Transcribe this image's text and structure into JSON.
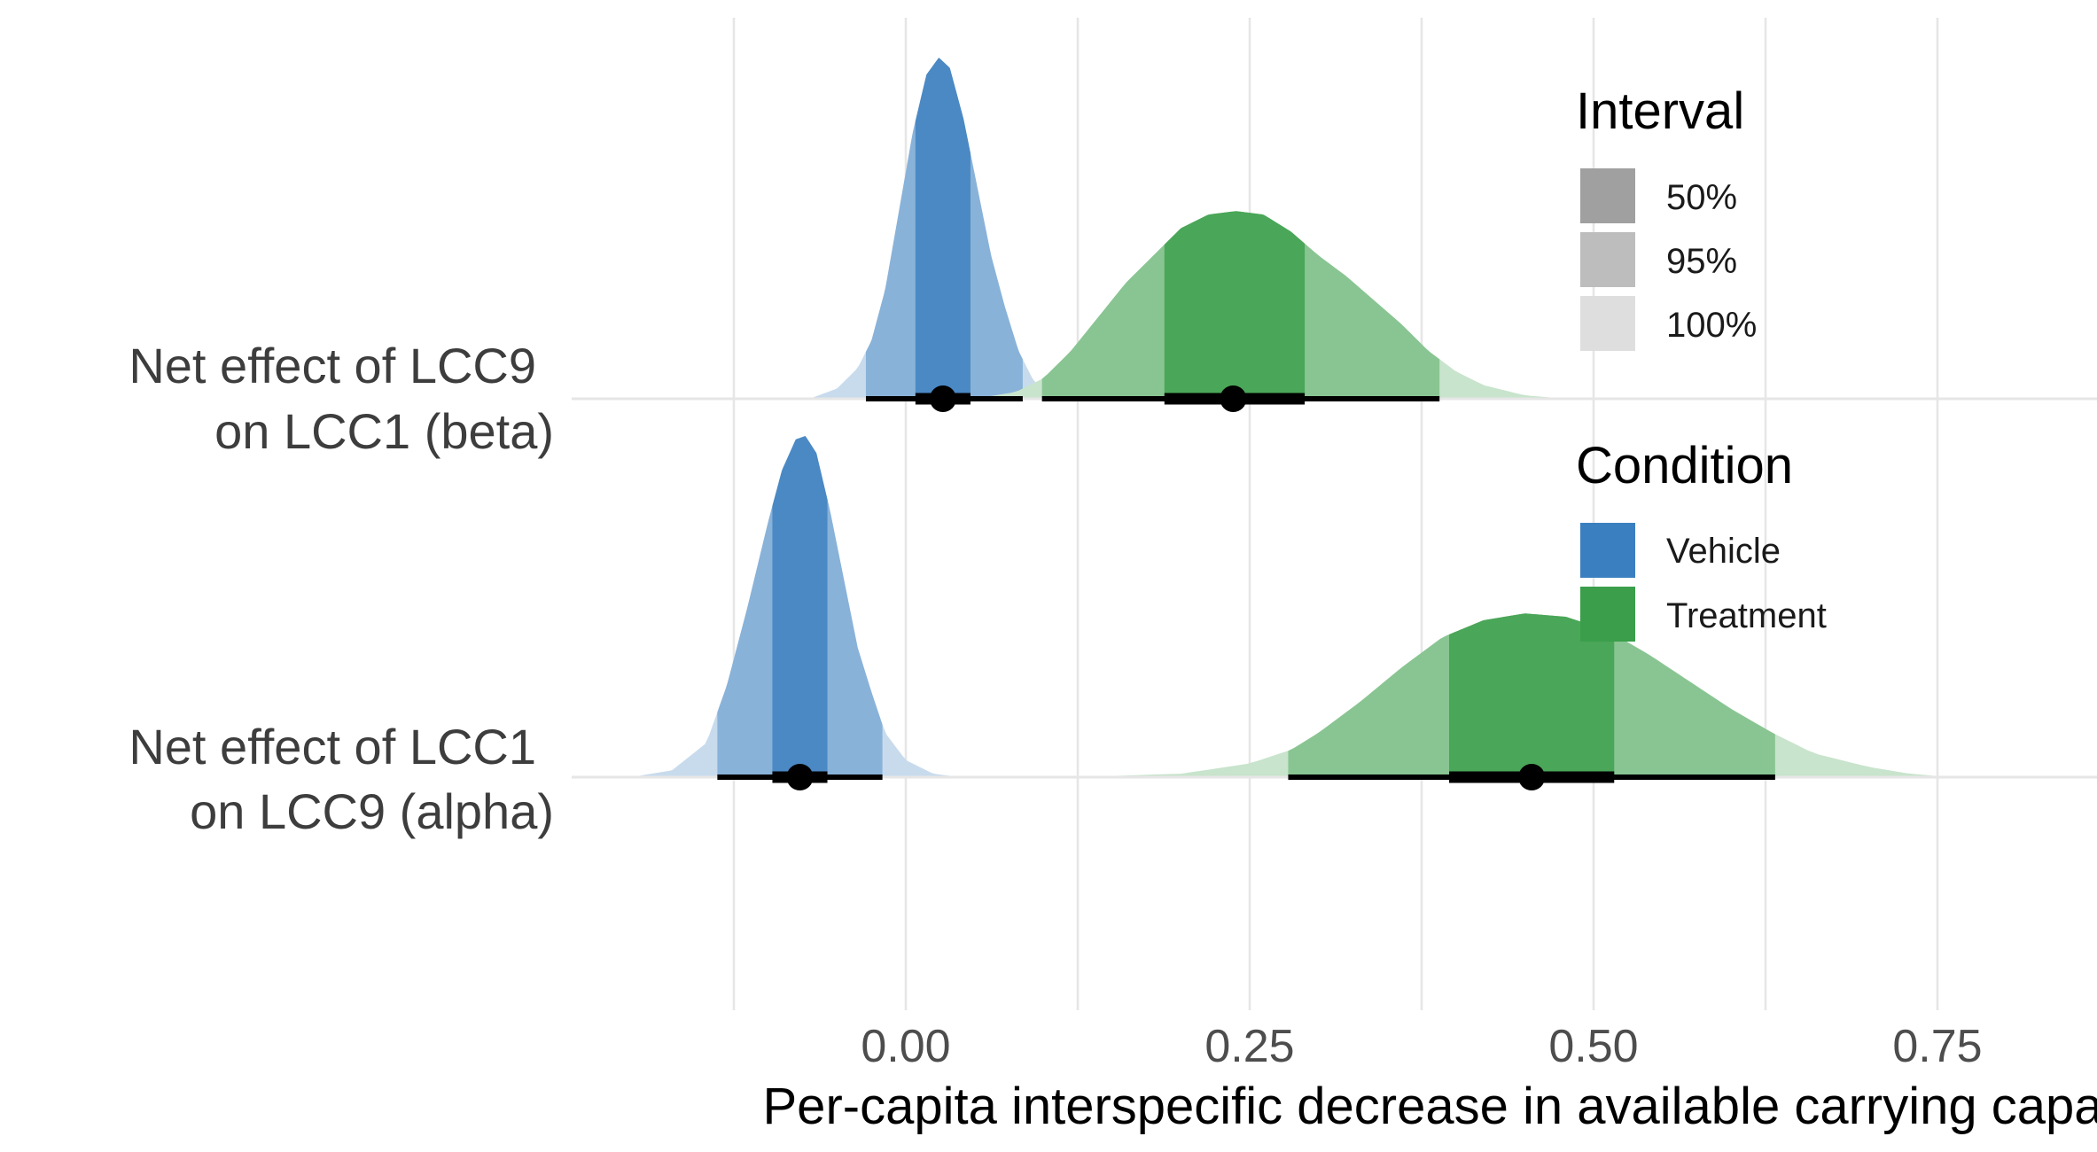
{
  "chart_data": {
    "type": "halfeye",
    "title": "",
    "xlabel": "Per-capita interspecific decrease in available carrying capacity",
    "ylabel": "",
    "xlim": [
      -0.245,
      0.86
    ],
    "x_ticks": [
      0.0,
      0.25,
      0.5,
      0.75
    ],
    "x_tick_labels": [
      "0.00",
      "0.25",
      "0.50",
      "0.75"
    ],
    "minor_gridlines": [
      -0.125,
      0.125,
      0.375,
      0.625
    ],
    "grid": true,
    "rows": [
      {
        "label_line1": "Net effect of LCC9",
        "label_line2": "on LCC1 (beta)"
      },
      {
        "label_line1": "Net effect of LCC1",
        "label_line2": "on LCC9 (alpha)"
      }
    ],
    "series": [
      {
        "name": "Vehicle",
        "row": 0,
        "color": "#3a7fbf",
        "median": 0.027,
        "ci50": [
          0.007,
          0.047
        ],
        "ci95": [
          -0.029,
          0.085
        ],
        "ci100": [
          -0.07,
          0.11
        ],
        "density": [
          [
            -0.07,
            0.0
          ],
          [
            -0.05,
            0.03
          ],
          [
            -0.035,
            0.09
          ],
          [
            -0.025,
            0.17
          ],
          [
            -0.015,
            0.32
          ],
          [
            -0.005,
            0.55
          ],
          [
            0.005,
            0.78
          ],
          [
            0.015,
            0.95
          ],
          [
            0.024,
            1.0
          ],
          [
            0.032,
            0.97
          ],
          [
            0.042,
            0.82
          ],
          [
            0.052,
            0.62
          ],
          [
            0.062,
            0.42
          ],
          [
            0.072,
            0.27
          ],
          [
            0.082,
            0.14
          ],
          [
            0.092,
            0.06
          ],
          [
            0.1,
            0.02
          ],
          [
            0.11,
            0.0
          ]
        ]
      },
      {
        "name": "Treatment",
        "row": 0,
        "color": "#3a9e4a",
        "median": 0.238,
        "ci50": [
          0.188,
          0.29
        ],
        "ci95": [
          0.099,
          0.388
        ],
        "ci100": [
          0.05,
          0.48
        ],
        "density": [
          [
            0.05,
            0.0
          ],
          [
            0.08,
            0.02
          ],
          [
            0.1,
            0.06
          ],
          [
            0.12,
            0.14
          ],
          [
            0.14,
            0.24
          ],
          [
            0.16,
            0.34
          ],
          [
            0.18,
            0.42
          ],
          [
            0.2,
            0.5
          ],
          [
            0.22,
            0.54
          ],
          [
            0.24,
            0.55
          ],
          [
            0.26,
            0.54
          ],
          [
            0.28,
            0.49
          ],
          [
            0.3,
            0.42
          ],
          [
            0.32,
            0.36
          ],
          [
            0.34,
            0.29
          ],
          [
            0.36,
            0.22
          ],
          [
            0.38,
            0.14
          ],
          [
            0.4,
            0.08
          ],
          [
            0.42,
            0.04
          ],
          [
            0.45,
            0.01
          ],
          [
            0.48,
            0.0
          ]
        ]
      },
      {
        "name": "Vehicle",
        "row": 1,
        "color": "#3a7fbf",
        "median": -0.077,
        "ci50": [
          -0.097,
          -0.057
        ],
        "ci95": [
          -0.137,
          -0.017
        ],
        "ci100": [
          -0.2,
          0.04
        ],
        "density": [
          [
            -0.2,
            0.0
          ],
          [
            -0.17,
            0.02
          ],
          [
            -0.145,
            0.1
          ],
          [
            -0.13,
            0.27
          ],
          [
            -0.115,
            0.5
          ],
          [
            -0.1,
            0.75
          ],
          [
            -0.09,
            0.9
          ],
          [
            -0.08,
            0.99
          ],
          [
            -0.073,
            1.0
          ],
          [
            -0.065,
            0.95
          ],
          [
            -0.055,
            0.78
          ],
          [
            -0.045,
            0.58
          ],
          [
            -0.035,
            0.38
          ],
          [
            -0.025,
            0.25
          ],
          [
            -0.015,
            0.13
          ],
          [
            0.0,
            0.05
          ],
          [
            0.02,
            0.01
          ],
          [
            0.04,
            0.0
          ]
        ]
      },
      {
        "name": "Treatment",
        "row": 1,
        "color": "#3a9e4a",
        "median": 0.455,
        "ci50": [
          0.395,
          0.515
        ],
        "ci95": [
          0.278,
          0.632
        ],
        "ci100": [
          0.12,
          0.76
        ],
        "density": [
          [
            0.12,
            0.0
          ],
          [
            0.2,
            0.01
          ],
          [
            0.25,
            0.04
          ],
          [
            0.28,
            0.08
          ],
          [
            0.3,
            0.13
          ],
          [
            0.33,
            0.22
          ],
          [
            0.36,
            0.32
          ],
          [
            0.39,
            0.41
          ],
          [
            0.42,
            0.46
          ],
          [
            0.45,
            0.48
          ],
          [
            0.48,
            0.47
          ],
          [
            0.51,
            0.43
          ],
          [
            0.54,
            0.36
          ],
          [
            0.57,
            0.28
          ],
          [
            0.6,
            0.2
          ],
          [
            0.63,
            0.13
          ],
          [
            0.66,
            0.07
          ],
          [
            0.7,
            0.03
          ],
          [
            0.73,
            0.01
          ],
          [
            0.76,
            0.0
          ]
        ]
      }
    ],
    "legend": {
      "interval_title": "Interval",
      "interval_items": [
        {
          "label": "50%",
          "color": "#a0a0a0"
        },
        {
          "label": "95%",
          "color": "#bdbdbd"
        },
        {
          "label": "100%",
          "color": "#dedede"
        }
      ],
      "condition_title": "Condition",
      "condition_items": [
        {
          "label": "Vehicle",
          "color": "#3a7fbf"
        },
        {
          "label": "Treatment",
          "color": "#3a9e4a"
        }
      ],
      "placement": "right-inside"
    }
  }
}
